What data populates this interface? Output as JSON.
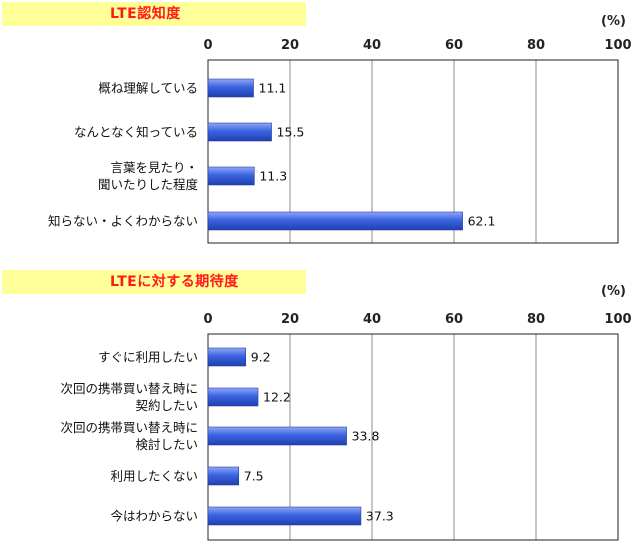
{
  "chart_data": [
    {
      "type": "bar",
      "orientation": "horizontal",
      "title": "LTE認知度",
      "unit": "(%)",
      "categories": [
        "概ね理解している",
        "なんとなく知っている",
        "言葉を見たり・\n聞いたりした程度",
        "知らない・よくわからない"
      ],
      "values": [
        11.1,
        15.5,
        11.3,
        62.1
      ],
      "value_labels": [
        "11.1",
        "15.5",
        "11.3",
        "62.1"
      ],
      "xlim": [
        0,
        100
      ],
      "xticks": [
        "0",
        "20",
        "40",
        "60",
        "80",
        "100"
      ],
      "grid": true,
      "bar_color": "#3b63e0"
    },
    {
      "type": "bar",
      "orientation": "horizontal",
      "title": "LTEに対する期待度",
      "unit": "(%)",
      "categories": [
        "すぐに利用したい",
        "次回の携帯買い替え時に\n契約したい",
        "次回の携帯買い替え時に\n検討したい",
        "利用したくない",
        "今はわからない"
      ],
      "values": [
        9.2,
        12.2,
        33.8,
        7.5,
        37.3
      ],
      "value_labels": [
        "9.2",
        "12.2",
        "33.8",
        "7.5",
        "37.3"
      ],
      "xlim": [
        0,
        100
      ],
      "xticks": [
        "0",
        "20",
        "40",
        "60",
        "80",
        "100"
      ],
      "grid": true,
      "bar_color": "#3b63e0"
    }
  ]
}
